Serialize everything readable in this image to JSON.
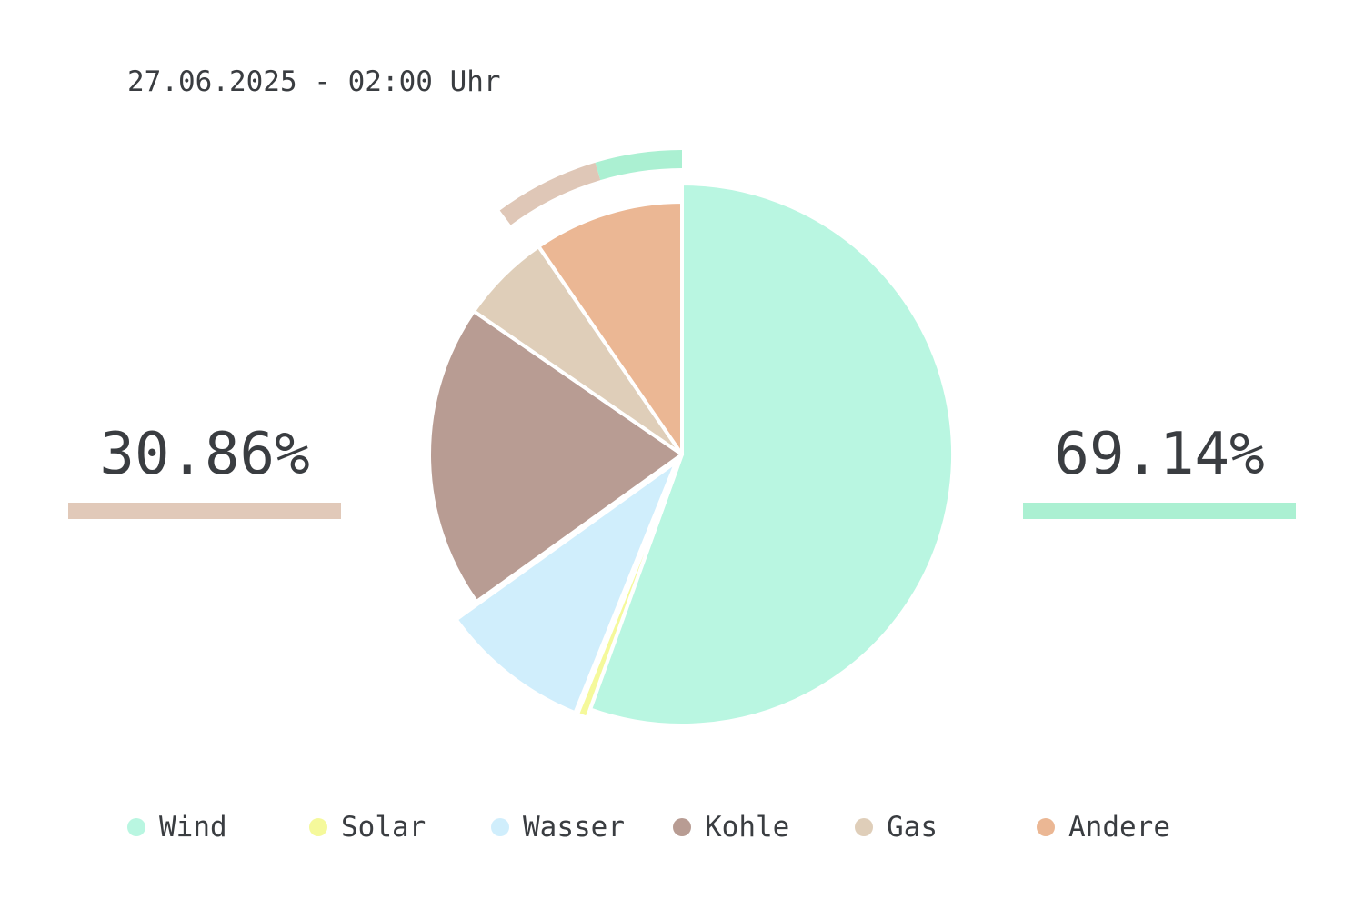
{
  "header": {
    "timestamp": "27.06.2025 - 02:00 Uhr"
  },
  "summary": {
    "left": {
      "value": "30.86%",
      "color": "#e1c9b9"
    },
    "right": {
      "value": "69.14%",
      "color": "#abf0d2"
    }
  },
  "chart_data": {
    "type": "pie",
    "title": "",
    "slices": [
      {
        "name": "Wind",
        "value": 55.5,
        "color": "#b9f6e1",
        "exploded": false
      },
      {
        "name": "Solar",
        "value": 0.6,
        "color": "#f5f99b",
        "exploded": true
      },
      {
        "name": "Wasser",
        "value": 9.0,
        "color": "#d0eefc",
        "exploded": true
      },
      {
        "name": "Kohle",
        "value": 19.5,
        "color": "#b89c93",
        "exploded": false
      },
      {
        "name": "Gas",
        "value": 5.8,
        "color": "#dfceb9",
        "exploded": false
      },
      {
        "name": "Andere",
        "value": 9.6,
        "color": "#ebb794",
        "exploded": false
      }
    ],
    "outer_ring": [
      {
        "value": 30.86,
        "color": "#dfc7b7"
      },
      {
        "value": 69.14,
        "color": "#abf0d2"
      }
    ],
    "legend_position": "bottom"
  }
}
